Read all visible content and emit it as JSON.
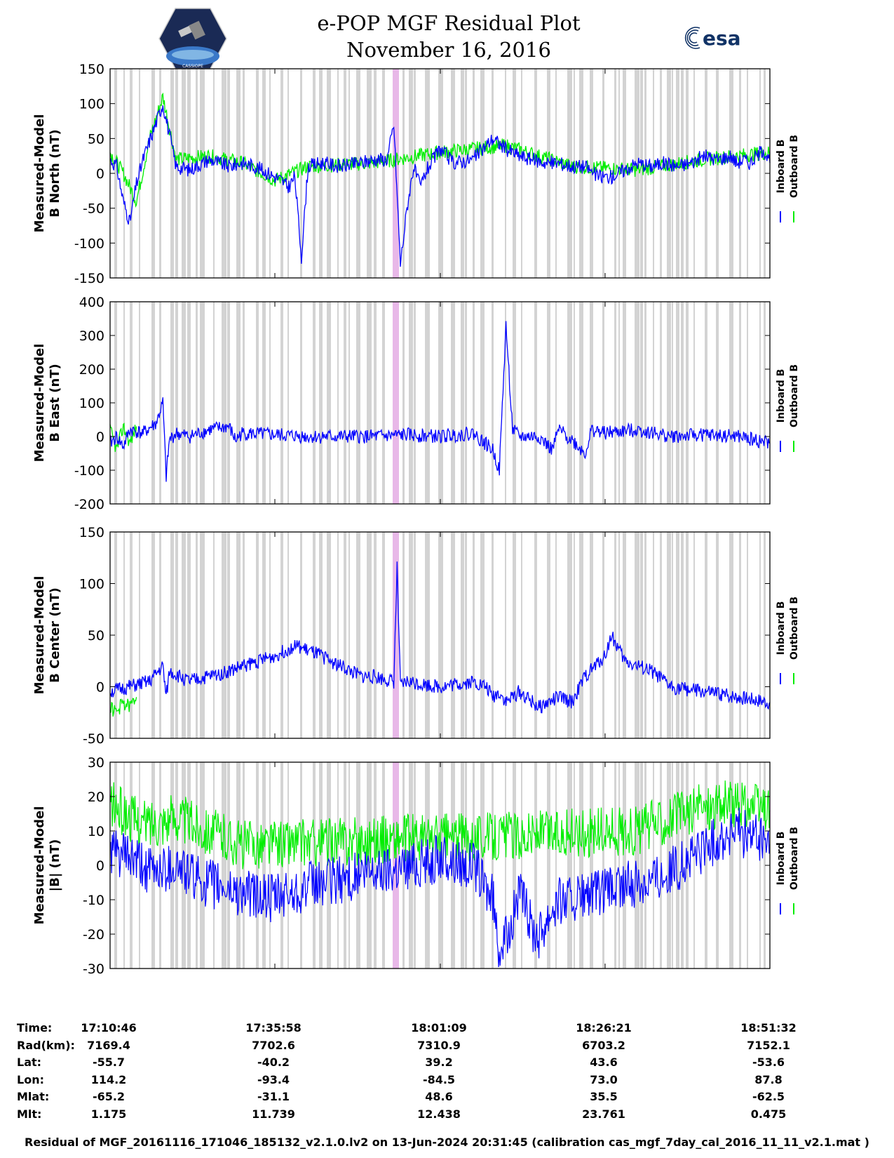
{
  "header": {
    "title_line1": "e-POP MGF Residual Plot",
    "title_line2": "November 16, 2016",
    "logo_left": "CASSIOPE",
    "logo_right": "esa"
  },
  "colors": {
    "inboard": "#0000ff",
    "outboard": "#00ee00",
    "gap_band": "#d3d3d3",
    "highlight_band": "#e8b8e8"
  },
  "legend": {
    "inboard": "Inboard B",
    "outboard": "Outboard B"
  },
  "chart_data": [
    {
      "type": "line",
      "ylabel_line1": "Measured-Model",
      "ylabel_line2": "B North (nT)",
      "ylim": [
        -150,
        150
      ],
      "yticks": [
        -150,
        -100,
        -50,
        0,
        50,
        100,
        150
      ],
      "series": [
        {
          "name": "Inboard B",
          "x": [
            0,
            1,
            2,
            3,
            4,
            5,
            6.5,
            8,
            10,
            12,
            15,
            18,
            20,
            22,
            24,
            26,
            27,
            28,
            29,
            30,
            32,
            35,
            38,
            40,
            42,
            43,
            44,
            45,
            46,
            47,
            48,
            50,
            52,
            55,
            58,
            60,
            62,
            64,
            66,
            68,
            70,
            72,
            74,
            76,
            78,
            80,
            82,
            84,
            86,
            88,
            90,
            92,
            94,
            95,
            96,
            97,
            98,
            99,
            100
          ],
          "y": [
            20,
            10,
            -40,
            -70,
            -15,
            20,
            60,
            100,
            10,
            5,
            20,
            10,
            15,
            10,
            0,
            -10,
            -20,
            -5,
            -120,
            10,
            15,
            10,
            15,
            20,
            20,
            70,
            -130,
            -50,
            10,
            -20,
            5,
            35,
            15,
            20,
            50,
            35,
            25,
            20,
            15,
            15,
            10,
            10,
            -5,
            -5,
            5,
            15,
            10,
            15,
            10,
            15,
            25,
            20,
            25,
            15,
            20,
            15,
            25,
            35,
            15
          ]
        },
        {
          "name": "Outboard B",
          "x": [
            0,
            2,
            4,
            6,
            8,
            10,
            15,
            20,
            25,
            30,
            40,
            50,
            60,
            70,
            80,
            90,
            95,
            100
          ],
          "y": [
            30,
            0,
            -40,
            50,
            110,
            20,
            25,
            15,
            -10,
            10,
            15,
            30,
            40,
            10,
            5,
            20,
            25,
            30
          ]
        }
      ]
    },
    {
      "type": "line",
      "ylabel_line1": "Measured-Model",
      "ylabel_line2": "B East (nT)",
      "ylim": [
        -200,
        400
      ],
      "yticks": [
        -200,
        -100,
        0,
        100,
        200,
        300,
        400
      ],
      "series": [
        {
          "name": "Inboard B",
          "x": [
            0,
            1,
            2,
            3,
            5,
            7,
            8,
            8.5,
            9,
            10,
            12,
            15,
            18,
            19,
            20,
            25,
            30,
            35,
            40,
            45,
            50,
            55,
            58,
            59,
            60,
            61,
            62,
            65,
            67,
            68,
            70,
            72,
            73,
            75,
            80,
            85,
            90,
            95,
            100
          ],
          "y": [
            -20,
            0,
            -30,
            20,
            10,
            40,
            100,
            -120,
            -10,
            10,
            0,
            20,
            30,
            -10,
            10,
            5,
            0,
            0,
            0,
            5,
            0,
            10,
            -40,
            -100,
            330,
            20,
            0,
            0,
            -40,
            20,
            -10,
            -50,
            20,
            10,
            20,
            0,
            5,
            0,
            -20
          ]
        },
        {
          "name": "Outboard B",
          "x": [
            0,
            1,
            2,
            3,
            4
          ],
          "y": [
            20,
            -40,
            30,
            -20,
            30
          ]
        }
      ]
    },
    {
      "type": "line",
      "ylabel_line1": "Measured-Model",
      "ylabel_line2": "B Center (nT)",
      "ylim": [
        -50,
        150
      ],
      "yticks": [
        -50,
        0,
        50,
        100,
        150
      ],
      "series": [
        {
          "name": "Inboard B",
          "x": [
            0,
            3,
            6,
            8,
            8.5,
            9,
            12,
            15,
            18,
            20,
            25,
            28,
            30,
            32,
            35,
            38,
            40,
            43,
            43.5,
            44,
            45,
            50,
            55,
            57,
            58,
            59,
            60,
            62,
            65,
            68,
            70,
            72,
            75,
            76,
            78,
            80,
            82,
            85,
            90,
            95,
            100
          ],
          "y": [
            -5,
            0,
            5,
            20,
            -10,
            15,
            5,
            10,
            15,
            20,
            30,
            40,
            35,
            30,
            20,
            10,
            10,
            5,
            115,
            0,
            5,
            0,
            5,
            0,
            -10,
            -5,
            -15,
            -5,
            -20,
            -10,
            -15,
            10,
            30,
            50,
            25,
            20,
            15,
            0,
            -5,
            -10,
            -15
          ]
        },
        {
          "name": "Outboard B",
          "x": [
            0,
            1,
            2,
            3,
            4
          ],
          "y": [
            -20,
            -25,
            -15,
            -20,
            -10
          ]
        }
      ]
    },
    {
      "type": "line",
      "ylabel_line1": "Measured-Model",
      "ylabel_line2": "|B| (nT)",
      "ylim": [
        -30,
        30
      ],
      "yticks": [
        -30,
        -20,
        -10,
        0,
        10,
        20,
        30
      ],
      "series": [
        {
          "name": "Inboard B",
          "x": [
            0,
            3,
            6,
            10,
            13,
            16,
            20,
            25,
            30,
            35,
            40,
            45,
            50,
            55,
            58,
            59,
            60,
            61,
            62,
            64,
            65,
            67,
            68,
            70,
            75,
            80,
            85,
            90,
            95,
            100
          ],
          "y": [
            4,
            2,
            -2,
            0,
            -4,
            -6,
            -8,
            -10,
            -6,
            -4,
            -2,
            0,
            2,
            0,
            -10,
            -24,
            -22,
            -15,
            -8,
            -18,
            -20,
            -12,
            -10,
            -10,
            -8,
            -5,
            -2,
            5,
            10,
            6
          ]
        },
        {
          "name": "Outboard B",
          "x": [
            0,
            2,
            5,
            10,
            15,
            20,
            80,
            85,
            90,
            95,
            100
          ],
          "y": [
            18,
            15,
            12,
            14,
            10,
            6,
            10,
            14,
            17,
            18,
            16
          ]
        }
      ]
    }
  ],
  "x_ticks": [
    "17:10:46",
    "17:35:58",
    "18:01:09",
    "18:26:21",
    "18:51:32"
  ],
  "info_table": [
    {
      "label": "Time:",
      "values": [
        "17:10:46",
        "17:35:58",
        "18:01:09",
        "18:26:21",
        "18:51:32"
      ]
    },
    {
      "label": "Rad(km):",
      "values": [
        "7169.4",
        "7702.6",
        "7310.9",
        "6703.2",
        "7152.1"
      ]
    },
    {
      "label": "Lat:",
      "values": [
        "-55.7",
        "-40.2",
        "39.2",
        "43.6",
        "-53.6"
      ]
    },
    {
      "label": "Lon:",
      "values": [
        "114.2",
        "-93.4",
        "-84.5",
        "73.0",
        "87.8"
      ]
    },
    {
      "label": "Mlat:",
      "values": [
        "-65.2",
        "-31.1",
        "48.6",
        "35.5",
        "-62.5"
      ]
    },
    {
      "label": "Mlt:",
      "values": [
        "1.175",
        "11.739",
        "12.438",
        "23.761",
        "0.475"
      ]
    }
  ],
  "footer": "Residual of MGF_20161116_171046_185132_v2.1.0.lv2 on 13-Jun-2024 20:31:45 (calibration cas_mgf_7day_cal_2016_11_11_v2.1.mat )"
}
